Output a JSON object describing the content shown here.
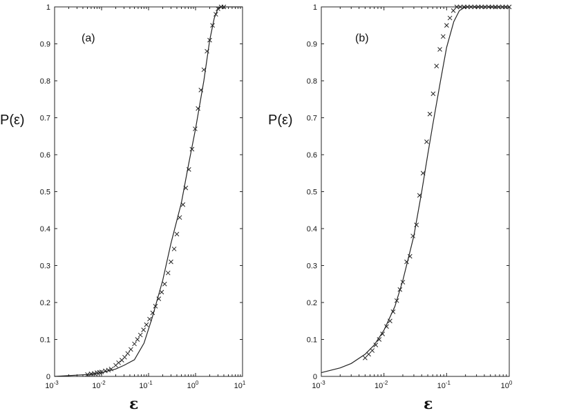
{
  "chart_data": [
    {
      "type": "line",
      "panel_label": "(a)",
      "xlabel": "ε",
      "ylabel": "P(ε)",
      "xscale": "log",
      "xlim": [
        0.001,
        10
      ],
      "ylim": [
        0,
        1
      ],
      "x_tick_labels": [
        {
          "base": "10",
          "exp": "-3",
          "value": 0.001
        },
        {
          "base": "10",
          "exp": "-2",
          "value": 0.01
        },
        {
          "base": "10",
          "exp": "-1",
          "value": 0.1
        },
        {
          "base": "10",
          "exp": "0",
          "value": 1
        },
        {
          "base": "10",
          "exp": "1",
          "value": 10
        }
      ],
      "y_ticks": [
        0,
        0.1,
        0.2,
        0.3,
        0.4,
        0.5,
        0.6,
        0.7,
        0.8,
        0.9,
        1
      ],
      "y_tick_labels": [
        "0",
        "0.1",
        "0.2",
        "0.3",
        "0.4",
        "0.5",
        "0.6",
        "0.7",
        "0.8",
        "0.9",
        "1"
      ],
      "series": [
        {
          "style": "line",
          "x": [
            0.001,
            0.005,
            0.01,
            0.02,
            0.03,
            0.05,
            0.08,
            0.12,
            0.2,
            0.3,
            0.5,
            0.7,
            1.0,
            1.5,
            2.0,
            2.5,
            3.0,
            3.5,
            10
          ],
          "y": [
            0.0,
            0.005,
            0.01,
            0.02,
            0.03,
            0.045,
            0.09,
            0.16,
            0.26,
            0.36,
            0.47,
            0.57,
            0.67,
            0.8,
            0.91,
            0.97,
            0.995,
            1.0,
            1.0
          ]
        },
        {
          "style": "marker-x",
          "x": [
            0.005,
            0.006,
            0.007,
            0.008,
            0.009,
            0.01,
            0.012,
            0.014,
            0.016,
            0.02,
            0.023,
            0.027,
            0.031,
            0.036,
            0.042,
            0.05,
            0.058,
            0.067,
            0.078,
            0.09,
            0.105,
            0.122,
            0.14,
            0.165,
            0.19,
            0.22,
            0.26,
            0.3,
            0.35,
            0.4,
            0.46,
            0.54,
            0.62,
            0.72,
            0.84,
            0.98,
            1.13,
            1.3,
            1.5,
            1.75,
            2.0,
            2.3,
            2.7,
            3.0,
            3.5,
            4.0
          ],
          "y": [
            0.005,
            0.007,
            0.008,
            0.01,
            0.011,
            0.012,
            0.015,
            0.017,
            0.02,
            0.03,
            0.037,
            0.044,
            0.052,
            0.062,
            0.073,
            0.088,
            0.1,
            0.112,
            0.126,
            0.14,
            0.155,
            0.172,
            0.19,
            0.21,
            0.228,
            0.25,
            0.28,
            0.31,
            0.345,
            0.385,
            0.43,
            0.465,
            0.51,
            0.56,
            0.615,
            0.67,
            0.725,
            0.775,
            0.83,
            0.88,
            0.91,
            0.95,
            0.98,
            0.995,
            1.0,
            1.0
          ]
        }
      ]
    },
    {
      "type": "line",
      "panel_label": "(b)",
      "xlabel": "ε",
      "ylabel": "P(ε)",
      "xscale": "log",
      "xlim": [
        0.001,
        1
      ],
      "ylim": [
        0,
        1
      ],
      "x_tick_labels": [
        {
          "base": "10",
          "exp": "-3",
          "value": 0.001
        },
        {
          "base": "10",
          "exp": "-2",
          "value": 0.01
        },
        {
          "base": "10",
          "exp": "-1",
          "value": 0.1
        },
        {
          "base": "10",
          "exp": "0",
          "value": 1
        }
      ],
      "y_ticks": [
        0,
        0.1,
        0.2,
        0.3,
        0.4,
        0.5,
        0.6,
        0.7,
        0.8,
        0.9,
        1
      ],
      "y_tick_labels": [
        "0",
        "0.1",
        "0.2",
        "0.3",
        "0.4",
        "0.5",
        "0.6",
        "0.7",
        "0.8",
        "0.9",
        "1"
      ],
      "series": [
        {
          "style": "line",
          "x": [
            0.001,
            0.002,
            0.003,
            0.005,
            0.007,
            0.01,
            0.015,
            0.02,
            0.03,
            0.04,
            0.05,
            0.06,
            0.08,
            0.1,
            0.13,
            0.16,
            0.2,
            1.0
          ],
          "y": [
            0.01,
            0.023,
            0.035,
            0.06,
            0.085,
            0.125,
            0.19,
            0.26,
            0.38,
            0.5,
            0.6,
            0.68,
            0.8,
            0.89,
            0.96,
            0.99,
            1.0,
            1.0
          ]
        },
        {
          "style": "marker-x",
          "x": [
            0.005,
            0.0057,
            0.0065,
            0.0074,
            0.0084,
            0.0095,
            0.011,
            0.0125,
            0.014,
            0.016,
            0.018,
            0.02,
            0.023,
            0.026,
            0.029,
            0.033,
            0.037,
            0.042,
            0.048,
            0.054,
            0.061,
            0.069,
            0.078,
            0.088,
            0.1,
            0.113,
            0.128,
            0.145,
            0.165,
            0.19,
            0.215,
            0.245,
            0.28,
            0.32,
            0.36,
            0.41,
            0.47,
            0.53,
            0.6,
            0.68,
            0.78,
            0.88,
            1.0
          ],
          "y": [
            0.05,
            0.06,
            0.07,
            0.085,
            0.1,
            0.115,
            0.135,
            0.15,
            0.175,
            0.205,
            0.235,
            0.255,
            0.31,
            0.325,
            0.38,
            0.41,
            0.49,
            0.55,
            0.635,
            0.71,
            0.765,
            0.84,
            0.885,
            0.92,
            0.95,
            0.97,
            0.99,
            1.0,
            1.0,
            1.0,
            1.0,
            1.0,
            1.0,
            1.0,
            1.0,
            1.0,
            1.0,
            1.0,
            1.0,
            1.0,
            1.0,
            1.0,
            1.0
          ]
        }
      ]
    }
  ]
}
